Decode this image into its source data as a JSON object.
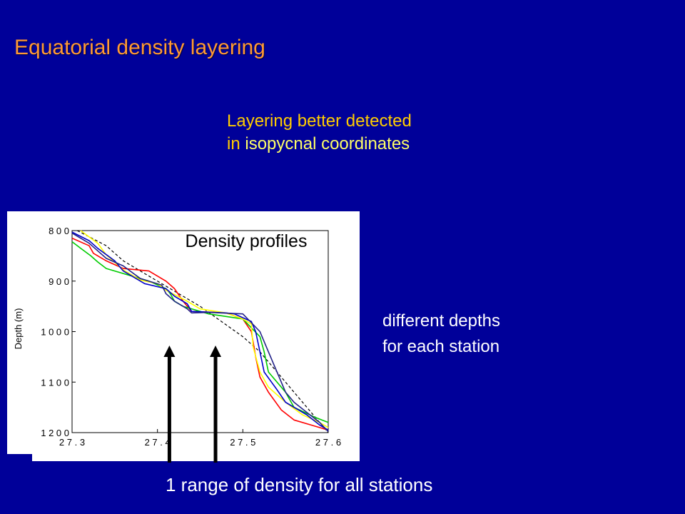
{
  "slide": {
    "title": "Equatorial density layering",
    "note_top_line1": "Layering better detected",
    "note_top_line2_prefix": "in ",
    "note_top_line2_strong": "isopycnal coordinates",
    "note_right_line1": "different depths",
    "note_right_line2": "for each station",
    "note_bottom": "1 range of density for all stations"
  },
  "colors": {
    "background": "#000099",
    "title": "#ff9933",
    "note_highlight": "#ffcc00",
    "arrows": "#000000"
  },
  "chart_data": {
    "type": "line",
    "title": "Density profiles",
    "xlabel": "",
    "ylabel": "Depth (m)",
    "xlim": [
      27.3,
      27.6
    ],
    "ylim": [
      1200,
      800
    ],
    "x_ticks": [
      "2 7 . 3",
      "2 7 . 4",
      "2 7 . 5",
      "2 7 . 6"
    ],
    "y_ticks": [
      "8 0 0",
      "9 0 0",
      "1 0 0 0",
      "1 1 0 0",
      "1 2 0 0"
    ],
    "grid": false,
    "arrows_at_x": [
      27.414,
      27.468
    ],
    "series": [
      {
        "color": "#000000",
        "dashed": true,
        "points": [
          [
            27.306,
            800
          ],
          [
            27.34,
            830
          ],
          [
            27.36,
            860
          ],
          [
            27.39,
            890
          ],
          [
            27.42,
            920
          ],
          [
            27.45,
            950
          ],
          [
            27.475,
            980
          ],
          [
            27.5,
            1010
          ],
          [
            27.52,
            1040
          ],
          [
            27.54,
            1080
          ],
          [
            27.56,
            1120
          ],
          [
            27.58,
            1160
          ],
          [
            27.6,
            1200
          ]
        ]
      },
      {
        "color": "#ff0000",
        "points": [
          [
            27.3,
            815
          ],
          [
            27.32,
            830
          ],
          [
            27.325,
            845
          ],
          [
            27.34,
            860
          ],
          [
            27.36,
            875
          ],
          [
            27.39,
            880
          ],
          [
            27.41,
            900
          ],
          [
            27.42,
            915
          ],
          [
            27.43,
            940
          ],
          [
            27.44,
            960
          ],
          [
            27.48,
            963
          ],
          [
            27.5,
            975
          ],
          [
            27.51,
            1000
          ],
          [
            27.515,
            1050
          ],
          [
            27.52,
            1090
          ],
          [
            27.53,
            1120
          ],
          [
            27.545,
            1155
          ],
          [
            27.56,
            1175
          ],
          [
            27.58,
            1185
          ],
          [
            27.6,
            1195
          ]
        ]
      },
      {
        "color": "#00cc00",
        "points": [
          [
            27.3,
            822
          ],
          [
            27.31,
            835
          ],
          [
            27.322,
            850
          ],
          [
            27.33,
            862
          ],
          [
            27.34,
            875
          ],
          [
            27.37,
            890
          ],
          [
            27.39,
            900
          ],
          [
            27.41,
            915
          ],
          [
            27.415,
            925
          ],
          [
            27.42,
            940
          ],
          [
            27.43,
            950
          ],
          [
            27.45,
            960
          ],
          [
            27.46,
            965
          ],
          [
            27.5,
            975
          ],
          [
            27.52,
            1010
          ],
          [
            27.525,
            1040
          ],
          [
            27.53,
            1080
          ],
          [
            27.55,
            1120
          ],
          [
            27.56,
            1150
          ],
          [
            27.585,
            1170
          ],
          [
            27.6,
            1180
          ]
        ]
      },
      {
        "color": "#ffff00",
        "points": [
          [
            27.31,
            800
          ],
          [
            27.33,
            825
          ],
          [
            27.34,
            848
          ],
          [
            27.36,
            878
          ],
          [
            27.38,
            898
          ],
          [
            27.4,
            905
          ],
          [
            27.41,
            918
          ],
          [
            27.435,
            940
          ],
          [
            27.45,
            955
          ],
          [
            27.48,
            963
          ],
          [
            27.5,
            975
          ],
          [
            27.51,
            985
          ],
          [
            27.512,
            1030
          ],
          [
            27.52,
            1080
          ],
          [
            27.53,
            1110
          ],
          [
            27.55,
            1140
          ],
          [
            27.57,
            1165
          ],
          [
            27.59,
            1180
          ],
          [
            27.6,
            1190
          ]
        ]
      },
      {
        "color": "#0000cc",
        "points": [
          [
            27.3,
            803
          ],
          [
            27.32,
            820
          ],
          [
            27.33,
            835
          ],
          [
            27.35,
            860
          ],
          [
            27.36,
            880
          ],
          [
            27.385,
            905
          ],
          [
            27.41,
            915
          ],
          [
            27.42,
            930
          ],
          [
            27.435,
            945
          ],
          [
            27.44,
            960
          ],
          [
            27.48,
            963
          ],
          [
            27.49,
            965
          ],
          [
            27.51,
            980
          ],
          [
            27.515,
            1000
          ],
          [
            27.52,
            1040
          ],
          [
            27.525,
            1080
          ],
          [
            27.54,
            1115
          ],
          [
            27.55,
            1140
          ],
          [
            27.575,
            1165
          ],
          [
            27.59,
            1185
          ],
          [
            27.6,
            1195
          ]
        ]
      },
      {
        "color": "#222288",
        "points": [
          [
            27.3,
            805
          ],
          [
            27.32,
            825
          ],
          [
            27.33,
            840
          ],
          [
            27.34,
            855
          ],
          [
            27.36,
            870
          ],
          [
            27.38,
            895
          ],
          [
            27.405,
            908
          ],
          [
            27.41,
            925
          ],
          [
            27.42,
            940
          ],
          [
            27.435,
            955
          ],
          [
            27.44,
            963
          ],
          [
            27.46,
            962
          ],
          [
            27.5,
            965
          ],
          [
            27.52,
            1000
          ],
          [
            27.53,
            1040
          ],
          [
            27.54,
            1080
          ],
          [
            27.55,
            1120
          ],
          [
            27.56,
            1140
          ],
          [
            27.575,
            1160
          ],
          [
            27.59,
            1180
          ],
          [
            27.6,
            1198
          ]
        ]
      }
    ]
  }
}
